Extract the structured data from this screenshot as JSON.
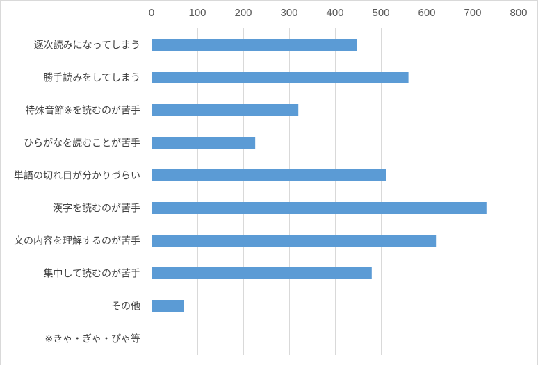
{
  "chart_data": {
    "type": "bar",
    "orientation": "horizontal",
    "categories": [
      "逐次読みになってしまう",
      "勝手読みをしてしまう",
      "特殊音節※を読むのが苦手",
      "ひらがなを読むことが苦手",
      "単語の切れ目が分かりづらい",
      "漢字を読むのが苦手",
      "文の内容を理解するのが苦手",
      "集中して読むのが苦手",
      "その他",
      "※きゃ・ぎゃ・ぴゃ等"
    ],
    "values": [
      448,
      560,
      320,
      226,
      512,
      730,
      620,
      480,
      70,
      null
    ],
    "xlim": [
      0,
      800
    ],
    "xticks": [
      0,
      100,
      200,
      300,
      400,
      500,
      600,
      700,
      800
    ],
    "axis_position": "top",
    "grid": true,
    "bar_color": "#5b9bd5",
    "title": "",
    "xlabel": "",
    "ylabel": ""
  }
}
